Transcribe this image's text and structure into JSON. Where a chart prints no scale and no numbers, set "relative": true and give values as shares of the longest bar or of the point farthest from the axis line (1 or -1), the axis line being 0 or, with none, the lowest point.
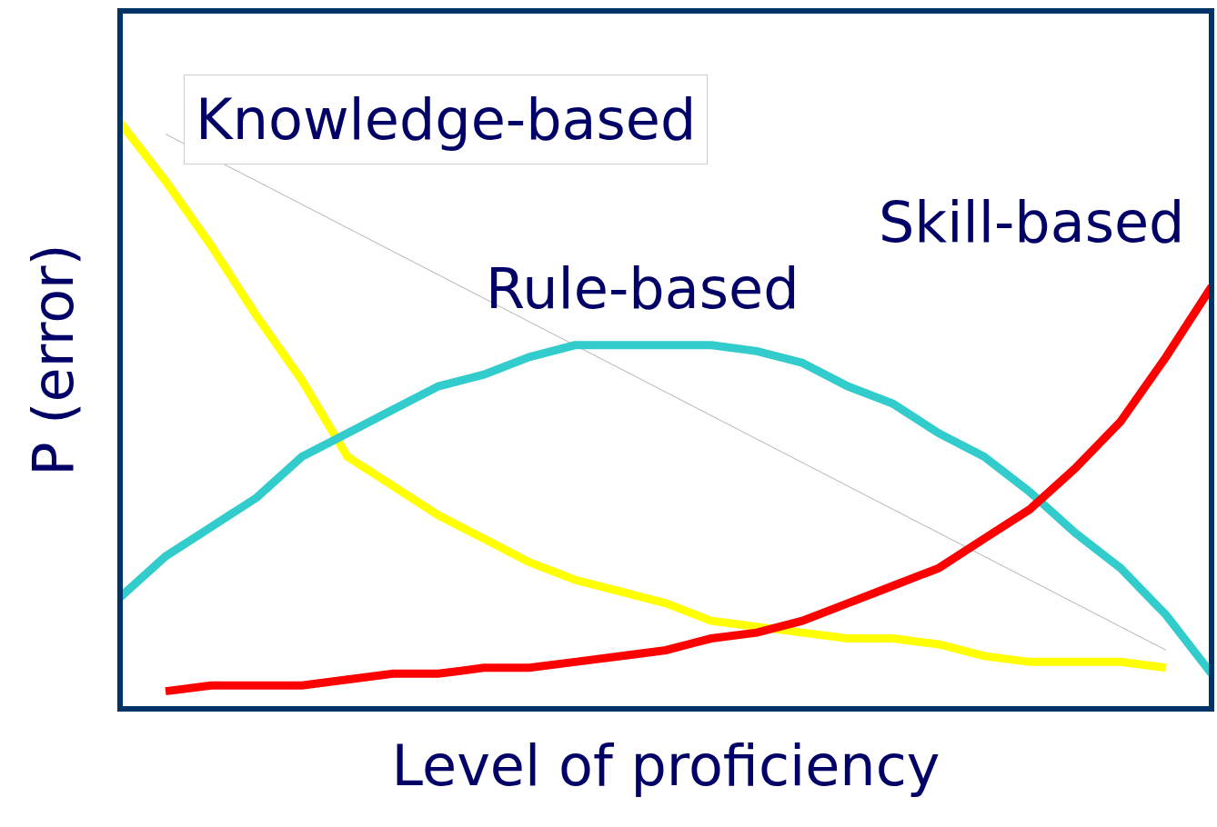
{
  "chart_data": {
    "type": "line",
    "relative": true,
    "xlabel": "Level of proficiency",
    "ylabel": "P (error)",
    "legend": false,
    "grid": false,
    "tick_labels": false,
    "marker": "none",
    "line_style": "solid",
    "categories": [
      null,
      null,
      null,
      null,
      null,
      null,
      null,
      null,
      null,
      null,
      null,
      null,
      null,
      null,
      null,
      null,
      null,
      null,
      null,
      null,
      null,
      null,
      null,
      null,
      null
    ],
    "series": [
      {
        "name": "Knowledge-based",
        "color": "#ffff00",
        "values": [
          1.0,
          0.9,
          0.79,
          0.67,
          0.56,
          0.43,
          0.38,
          0.33,
          0.29,
          0.25,
          0.22,
          0.2,
          0.18,
          0.15,
          0.14,
          0.13,
          0.12,
          0.12,
          0.11,
          0.09,
          0.08,
          0.08,
          0.08,
          0.07,
          null
        ]
      },
      {
        "name": "Rule-based",
        "color": "#33cccc",
        "values": [
          0.19,
          0.26,
          0.31,
          0.36,
          0.43,
          0.47,
          0.51,
          0.55,
          0.57,
          0.6,
          0.62,
          0.62,
          0.62,
          0.62,
          0.61,
          0.59,
          0.55,
          0.52,
          0.47,
          0.43,
          0.37,
          0.3,
          0.24,
          0.16,
          0.06
        ]
      },
      {
        "name": "Skill-based",
        "color": "#ff0000",
        "values": [
          null,
          0.03,
          0.04,
          0.04,
          0.04,
          0.05,
          0.06,
          0.06,
          0.07,
          0.07,
          0.08,
          0.09,
          0.1,
          0.12,
          0.13,
          0.15,
          0.18,
          0.21,
          0.24,
          0.29,
          0.34,
          0.41,
          0.49,
          0.6,
          0.72
        ]
      },
      {
        "color": "#a0a0a0",
        "line_style": "solid",
        "values": [
          null,
          0.98,
          null,
          null,
          null,
          null,
          null,
          null,
          null,
          null,
          null,
          null,
          null,
          null,
          null,
          null,
          null,
          null,
          null,
          null,
          null,
          null,
          null,
          0.1,
          null
        ]
      }
    ]
  }
}
